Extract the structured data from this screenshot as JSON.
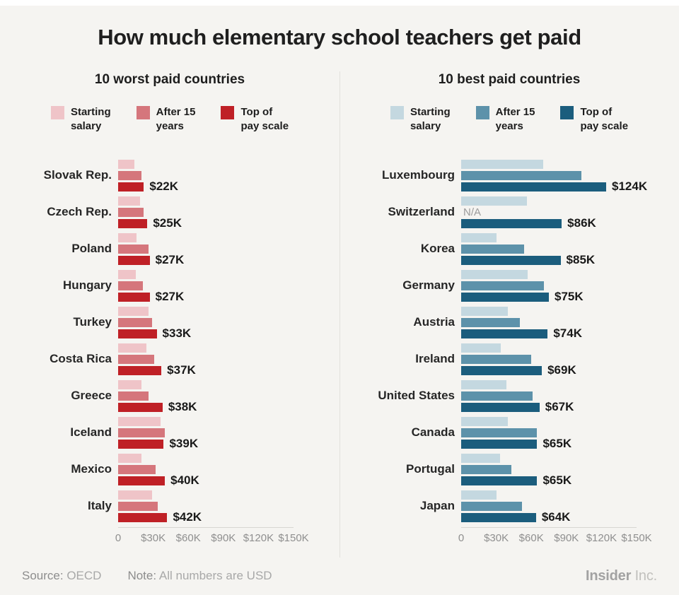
{
  "title": "How much elementary school teachers get paid",
  "chart_data": [
    {
      "type": "bar",
      "orientation": "horizontal",
      "title": "10 worst paid countries",
      "na_label": "N/A",
      "xlim": [
        0,
        150
      ],
      "x_ticks": [
        {
          "value": 0,
          "label": "0"
        },
        {
          "value": 30,
          "label": "$30K"
        },
        {
          "value": 60,
          "label": "$60K"
        },
        {
          "value": 90,
          "label": "$90K"
        },
        {
          "value": 120,
          "label": "$120K"
        },
        {
          "value": 150,
          "label": "$150K"
        }
      ],
      "categories": [
        "Slovak Rep.",
        "Czech Rep.",
        "Poland",
        "Hungary",
        "Turkey",
        "Costa Rica",
        "Greece",
        "Iceland",
        "Mexico",
        "Italy"
      ],
      "series": [
        {
          "name": "Starting salary",
          "legend_label": "Starting\nsalary",
          "color": "#efc4c8",
          "values": [
            14,
            19,
            16,
            15,
            26,
            24,
            20,
            36,
            20,
            29
          ]
        },
        {
          "name": "After 15 years",
          "legend_label": "After 15\nyears",
          "color": "#d5767c",
          "values": [
            20,
            22,
            26,
            21,
            29,
            31,
            26,
            40,
            32,
            34
          ]
        },
        {
          "name": "Top of pay scale",
          "legend_label": "Top of\npay scale",
          "color": "#bf2026",
          "values": [
            22,
            25,
            27,
            27,
            33,
            37,
            38,
            39,
            40,
            42
          ]
        }
      ],
      "bar_labels": [
        "$22K",
        "$25K",
        "$27K",
        "$27K",
        "$33K",
        "$37K",
        "$38K",
        "$39K",
        "$40K",
        "$42K"
      ]
    },
    {
      "type": "bar",
      "orientation": "horizontal",
      "title": "10 best paid countries",
      "na_label": "N/A",
      "xlim": [
        0,
        150
      ],
      "x_ticks": [
        {
          "value": 0,
          "label": "0"
        },
        {
          "value": 30,
          "label": "$30K"
        },
        {
          "value": 60,
          "label": "$60K"
        },
        {
          "value": 90,
          "label": "$90K"
        },
        {
          "value": 120,
          "label": "$120K"
        },
        {
          "value": 150,
          "label": "$150K"
        }
      ],
      "categories": [
        "Luxembourg",
        "Switzerland",
        "Korea",
        "Germany",
        "Austria",
        "Ireland",
        "United States",
        "Canada",
        "Portugal",
        "Japan"
      ],
      "series": [
        {
          "name": "Starting salary",
          "legend_label": "Starting\nsalary",
          "color": "#c4d8e0",
          "values": [
            70,
            56,
            30,
            57,
            40,
            34,
            39,
            40,
            33,
            30
          ]
        },
        {
          "name": "After 15 years",
          "legend_label": "After 15\nyears",
          "color": "#5d92aa",
          "values": [
            103,
            null,
            54,
            71,
            50,
            60,
            61,
            65,
            43,
            52
          ]
        },
        {
          "name": "Top of pay scale",
          "legend_label": "Top of\npay scale",
          "color": "#1b5d7d",
          "values": [
            124,
            86,
            85,
            75,
            74,
            69,
            67,
            65,
            65,
            64
          ]
        }
      ],
      "bar_labels": [
        "$124K",
        "$86K",
        "$85K",
        "$75K",
        "$74K",
        "$69K",
        "$67K",
        "$65K",
        "$65K",
        "$64K"
      ]
    }
  ],
  "footer": {
    "source_label": "Source:",
    "source": "OECD",
    "note_label": "Note:",
    "note": "All numbers are USD",
    "brand": "Insider",
    "brand_suffix": "Inc."
  }
}
